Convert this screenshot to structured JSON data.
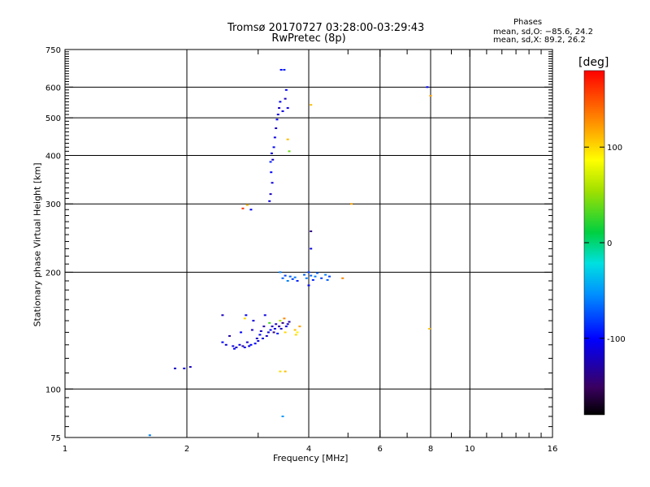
{
  "chart_data": {
    "type": "scatter",
    "title": "Tromsø 20170727 03:28:00-03:29:43",
    "subtitle": "RwPretec (8p)",
    "xlabel": "Frequency [MHz]",
    "ylabel": "Stationary phase Virtual Height [km]",
    "x_scale": "log",
    "y_scale": "log",
    "xlim": [
      1,
      16
    ],
    "ylim": [
      75,
      750
    ],
    "x_ticks": [
      1,
      2,
      4,
      6,
      8,
      10,
      16
    ],
    "x_tick_labels": [
      "1",
      "2",
      "4",
      "6",
      "8",
      "10",
      "16"
    ],
    "y_ticks": [
      75,
      100,
      200,
      300,
      400,
      500,
      600,
      750
    ],
    "y_tick_labels": [
      "75",
      "100",
      "200",
      "300",
      "400",
      "500",
      "600",
      "750"
    ],
    "grid": true,
    "stats": {
      "heading": "Phases",
      "line1": "mean, sd,O: −85.6, 24.2",
      "line2": "mean, sd,X:  89.2, 26.2"
    },
    "colorbar": {
      "label": "[deg]",
      "range": [
        -180,
        180
      ],
      "ticks": [
        100,
        0,
        -100
      ],
      "tick_labels": [
        "100",
        "0",
        "-100"
      ]
    },
    "points": [
      {
        "x": 1.62,
        "y": 76,
        "phase": -60
      },
      {
        "x": 1.87,
        "y": 113,
        "phase": -120
      },
      {
        "x": 1.97,
        "y": 113,
        "phase": -110
      },
      {
        "x": 2.04,
        "y": 114,
        "phase": -120
      },
      {
        "x": 2.45,
        "y": 155,
        "phase": -120
      },
      {
        "x": 2.45,
        "y": 132,
        "phase": -100
      },
      {
        "x": 2.5,
        "y": 130,
        "phase": -110
      },
      {
        "x": 2.55,
        "y": 137,
        "phase": -130
      },
      {
        "x": 2.6,
        "y": 129,
        "phase": -110
      },
      {
        "x": 2.62,
        "y": 127,
        "phase": -100
      },
      {
        "x": 2.65,
        "y": 128,
        "phase": -120
      },
      {
        "x": 2.7,
        "y": 130,
        "phase": -110
      },
      {
        "x": 2.72,
        "y": 140,
        "phase": -100
      },
      {
        "x": 2.75,
        "y": 129,
        "phase": -130
      },
      {
        "x": 2.78,
        "y": 128,
        "phase": -110
      },
      {
        "x": 2.8,
        "y": 155,
        "phase": -100
      },
      {
        "x": 2.82,
        "y": 132,
        "phase": -120
      },
      {
        "x": 2.85,
        "y": 129,
        "phase": -110
      },
      {
        "x": 2.88,
        "y": 130,
        "phase": -100
      },
      {
        "x": 2.9,
        "y": 142,
        "phase": -120
      },
      {
        "x": 2.92,
        "y": 150,
        "phase": -110
      },
      {
        "x": 2.95,
        "y": 131,
        "phase": -100
      },
      {
        "x": 2.98,
        "y": 135,
        "phase": -120
      },
      {
        "x": 3.0,
        "y": 133,
        "phase": -110
      },
      {
        "x": 3.03,
        "y": 138,
        "phase": -100
      },
      {
        "x": 3.05,
        "y": 141,
        "phase": -120
      },
      {
        "x": 3.08,
        "y": 135,
        "phase": -110
      },
      {
        "x": 3.1,
        "y": 145,
        "phase": -130
      },
      {
        "x": 3.12,
        "y": 155,
        "phase": -110
      },
      {
        "x": 3.15,
        "y": 137,
        "phase": -120
      },
      {
        "x": 3.18,
        "y": 140,
        "phase": -110
      },
      {
        "x": 3.2,
        "y": 148,
        "phase": 30
      },
      {
        "x": 3.22,
        "y": 142,
        "phase": -100
      },
      {
        "x": 3.25,
        "y": 145,
        "phase": -120
      },
      {
        "x": 3.28,
        "y": 140,
        "phase": -140
      },
      {
        "x": 3.3,
        "y": 143,
        "phase": -110
      },
      {
        "x": 3.32,
        "y": 147,
        "phase": -120
      },
      {
        "x": 3.35,
        "y": 139,
        "phase": -90
      },
      {
        "x": 3.38,
        "y": 145,
        "phase": -130
      },
      {
        "x": 3.4,
        "y": 150,
        "phase": 60
      },
      {
        "x": 3.42,
        "y": 143,
        "phase": -120
      },
      {
        "x": 3.45,
        "y": 148,
        "phase": -140
      },
      {
        "x": 3.48,
        "y": 152,
        "phase": 130
      },
      {
        "x": 3.5,
        "y": 140,
        "phase": 100
      },
      {
        "x": 3.52,
        "y": 145,
        "phase": -110
      },
      {
        "x": 3.55,
        "y": 147,
        "phase": -120
      },
      {
        "x": 3.58,
        "y": 149,
        "phase": -130
      },
      {
        "x": 3.4,
        "y": 111,
        "phase": 100
      },
      {
        "x": 3.5,
        "y": 111,
        "phase": 110
      },
      {
        "x": 3.45,
        "y": 85,
        "phase": -50
      },
      {
        "x": 3.7,
        "y": 142,
        "phase": 110
      },
      {
        "x": 3.75,
        "y": 140,
        "phase": 90
      },
      {
        "x": 3.8,
        "y": 145,
        "phase": 120
      },
      {
        "x": 3.72,
        "y": 138,
        "phase": 100
      },
      {
        "x": 2.78,
        "y": 152,
        "phase": 100
      },
      {
        "x": 2.75,
        "y": 292,
        "phase": 160
      },
      {
        "x": 2.82,
        "y": 298,
        "phase": 110
      },
      {
        "x": 2.88,
        "y": 290,
        "phase": -100
      },
      {
        "x": 3.2,
        "y": 305,
        "phase": -110
      },
      {
        "x": 3.22,
        "y": 318,
        "phase": -120
      },
      {
        "x": 3.25,
        "y": 340,
        "phase": -110
      },
      {
        "x": 3.23,
        "y": 362,
        "phase": -100
      },
      {
        "x": 3.22,
        "y": 385,
        "phase": -90
      },
      {
        "x": 3.24,
        "y": 405,
        "phase": -110
      },
      {
        "x": 3.26,
        "y": 390,
        "phase": -120
      },
      {
        "x": 3.28,
        "y": 420,
        "phase": -100
      },
      {
        "x": 3.3,
        "y": 445,
        "phase": -110
      },
      {
        "x": 3.32,
        "y": 470,
        "phase": -120
      },
      {
        "x": 3.34,
        "y": 495,
        "phase": -100
      },
      {
        "x": 3.36,
        "y": 510,
        "phase": -110
      },
      {
        "x": 3.38,
        "y": 530,
        "phase": -120
      },
      {
        "x": 3.4,
        "y": 550,
        "phase": -100
      },
      {
        "x": 3.45,
        "y": 520,
        "phase": -110
      },
      {
        "x": 3.5,
        "y": 560,
        "phase": -120
      },
      {
        "x": 3.52,
        "y": 590,
        "phase": -100
      },
      {
        "x": 3.55,
        "y": 530,
        "phase": -110
      },
      {
        "x": 3.42,
        "y": 665,
        "phase": -100
      },
      {
        "x": 3.48,
        "y": 665,
        "phase": -90
      },
      {
        "x": 3.55,
        "y": 440,
        "phase": 110
      },
      {
        "x": 3.58,
        "y": 410,
        "phase": 40
      },
      {
        "x": 4.05,
        "y": 540,
        "phase": 110
      },
      {
        "x": 3.4,
        "y": 200,
        "phase": -60
      },
      {
        "x": 3.45,
        "y": 193,
        "phase": -70
      },
      {
        "x": 3.5,
        "y": 196,
        "phase": -80
      },
      {
        "x": 3.55,
        "y": 190,
        "phase": -60
      },
      {
        "x": 3.6,
        "y": 195,
        "phase": -70
      },
      {
        "x": 3.65,
        "y": 192,
        "phase": -80
      },
      {
        "x": 3.7,
        "y": 194,
        "phase": -60
      },
      {
        "x": 3.75,
        "y": 190,
        "phase": -90
      },
      {
        "x": 3.9,
        "y": 197,
        "phase": -70
      },
      {
        "x": 3.95,
        "y": 193,
        "phase": -60
      },
      {
        "x": 4.0,
        "y": 200,
        "phase": -80
      },
      {
        "x": 4.05,
        "y": 196,
        "phase": -70
      },
      {
        "x": 4.1,
        "y": 191,
        "phase": -90
      },
      {
        "x": 4.15,
        "y": 195,
        "phase": -60
      },
      {
        "x": 4.2,
        "y": 199,
        "phase": -70
      },
      {
        "x": 4.3,
        "y": 193,
        "phase": -80
      },
      {
        "x": 4.4,
        "y": 197,
        "phase": -60
      },
      {
        "x": 4.45,
        "y": 191,
        "phase": -70
      },
      {
        "x": 4.5,
        "y": 195,
        "phase": -80
      },
      {
        "x": 4.0,
        "y": 185,
        "phase": -100
      },
      {
        "x": 4.05,
        "y": 230,
        "phase": -110
      },
      {
        "x": 4.05,
        "y": 255,
        "phase": -140
      },
      {
        "x": 4.85,
        "y": 193,
        "phase": 130
      },
      {
        "x": 5.1,
        "y": 300,
        "phase": 120
      },
      {
        "x": 7.85,
        "y": 600,
        "phase": -100
      },
      {
        "x": 8.0,
        "y": 570,
        "phase": 120
      },
      {
        "x": 7.95,
        "y": 143,
        "phase": 110
      }
    ]
  }
}
